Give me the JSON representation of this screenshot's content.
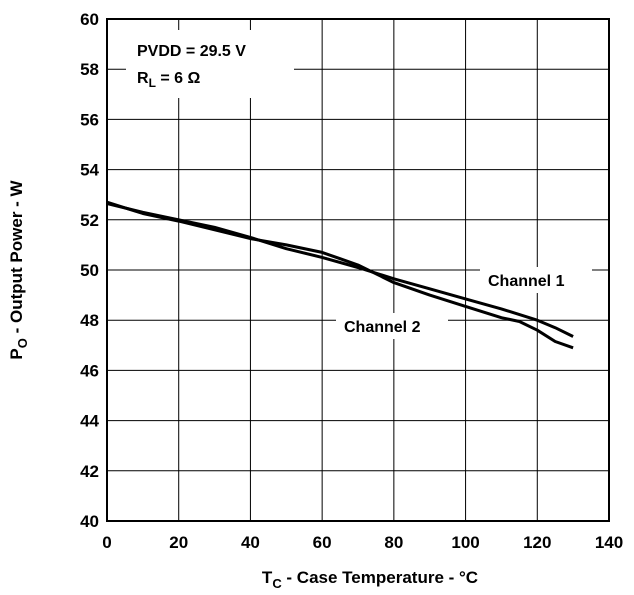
{
  "chart_data": {
    "type": "line",
    "xlabel": {
      "main": "T",
      "sub": "C",
      "rest": " - Case Temperature - °C"
    },
    "ylabel": {
      "main": "P",
      "sub": "O",
      "rest": " - Output Power - W"
    },
    "xlim": [
      0,
      140
    ],
    "ylim": [
      40,
      60
    ],
    "xticks": [
      0,
      20,
      40,
      60,
      80,
      100,
      120,
      140
    ],
    "yticks": [
      40,
      42,
      44,
      46,
      48,
      50,
      52,
      54,
      56,
      58,
      60
    ],
    "grid": true,
    "annotation": {
      "line1": "PVDD = 29.5 V",
      "line2_main": "R",
      "line2_sub": "L",
      "line2_rest": " = 6 Ω"
    },
    "series": [
      {
        "name": "Channel 1",
        "x": [
          0,
          10,
          20,
          30,
          40,
          50,
          60,
          70,
          80,
          90,
          100,
          110,
          120,
          125,
          130
        ],
        "y": [
          52.65,
          52.3,
          52.0,
          51.7,
          51.3,
          50.85,
          50.5,
          50.1,
          49.65,
          49.25,
          48.85,
          48.45,
          48.0,
          47.7,
          47.35
        ]
      },
      {
        "name": "Channel 2",
        "x": [
          0,
          10,
          20,
          30,
          40,
          50,
          60,
          65,
          70,
          80,
          90,
          100,
          110,
          115,
          120,
          125,
          130
        ],
        "y": [
          52.7,
          52.25,
          51.95,
          51.6,
          51.25,
          51.0,
          50.7,
          50.45,
          50.2,
          49.5,
          49.0,
          48.55,
          48.1,
          47.95,
          47.6,
          47.15,
          46.9
        ]
      }
    ]
  }
}
